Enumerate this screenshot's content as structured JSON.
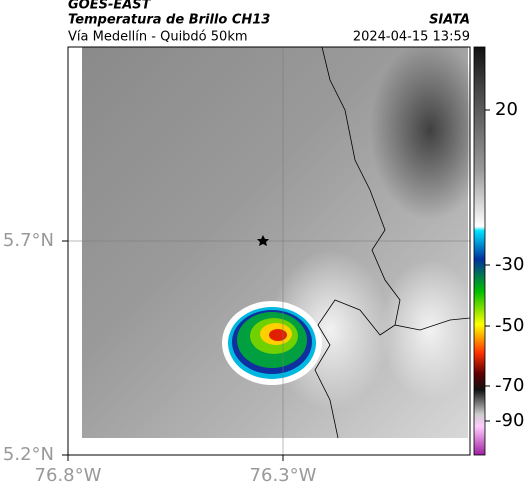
{
  "header": {
    "satellite": "GOES-EAST",
    "title": "Temperatura de Brillo CH13",
    "subtitle": "Vía Medellín - Quibdó 50km",
    "source": "SIATA",
    "datetime": "2024-04-15 13:59"
  },
  "map": {
    "lat_ticks": [
      "5.7°N",
      "5.2°N"
    ],
    "lon_ticks": [
      "76.8°W",
      "76.3°W"
    ]
  },
  "colorbar": {
    "ticks": [
      20,
      -30,
      -50,
      -70,
      -90
    ]
  }
}
